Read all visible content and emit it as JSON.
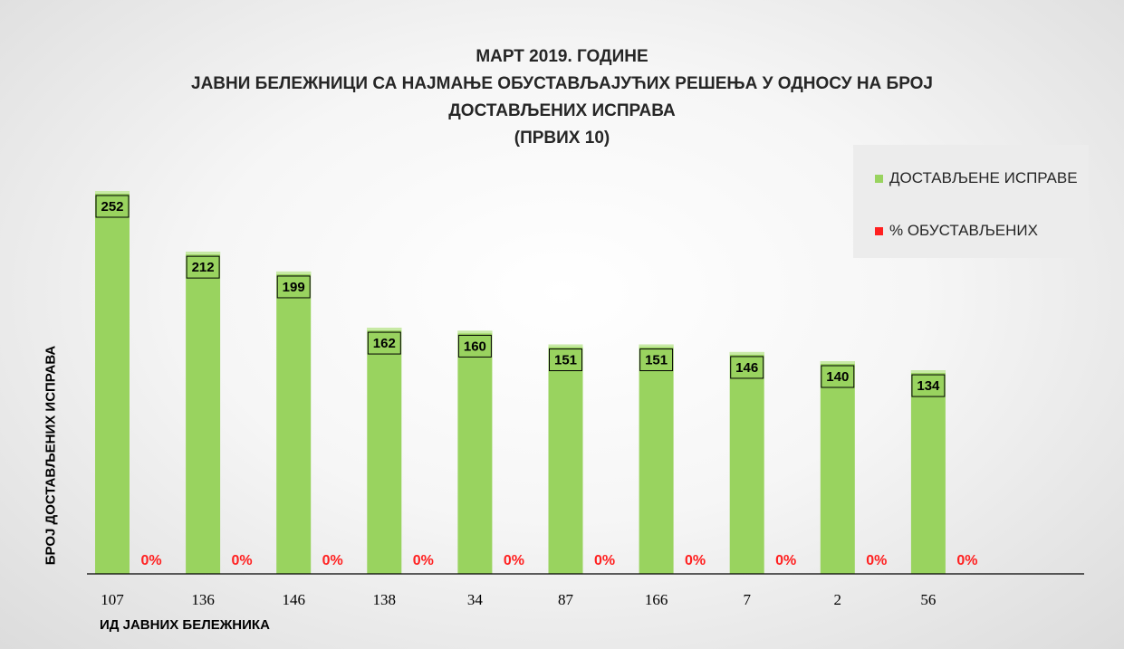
{
  "chart_data": {
    "type": "bar",
    "title_lines": [
      "МАРТ 2019. ГОДИНЕ",
      "ЈАВНИ БЕЛЕЖНИЦИ СА НАЈМАЊЕ ОБУСТАВЉАЈУЋИХ РЕШЕЊА У ОДНОСУ НА БРОЈ",
      "ДОСТАВЉЕНИХ ИСПРАВА",
      "(ПРВИХ 10)"
    ],
    "xlabel": "ИД ЈАВНИХ БЕЛЕЖНИКА",
    "ylabel": "БРОЈ ДОСТАВЉЕНИХ ИСПРАВА",
    "categories": [
      "107",
      "136",
      "146",
      "138",
      "34",
      "87",
      "166",
      "7",
      "2",
      "56"
    ],
    "series": [
      {
        "name": "ДОСТАВЉЕНЕ ИСПРАВЕ",
        "color": "#99d35f",
        "values": [
          252,
          212,
          199,
          162,
          160,
          151,
          151,
          146,
          140,
          134
        ],
        "labels": [
          "252",
          "212",
          "199",
          "162",
          "160",
          "151",
          "151",
          "146",
          "140",
          "134"
        ]
      },
      {
        "name": "% ОБУСТАВЉЕНИХ",
        "color": "#ff2020",
        "values": [
          0,
          0,
          0,
          0,
          0,
          0,
          0,
          0,
          0,
          0
        ],
        "labels": [
          "0%",
          "0%",
          "0%",
          "0%",
          "0%",
          "0%",
          "0%",
          "0%",
          "0%",
          "0%"
        ]
      }
    ],
    "ylim": [
      0,
      260
    ],
    "grid": false,
    "legend_position": "top-right"
  }
}
